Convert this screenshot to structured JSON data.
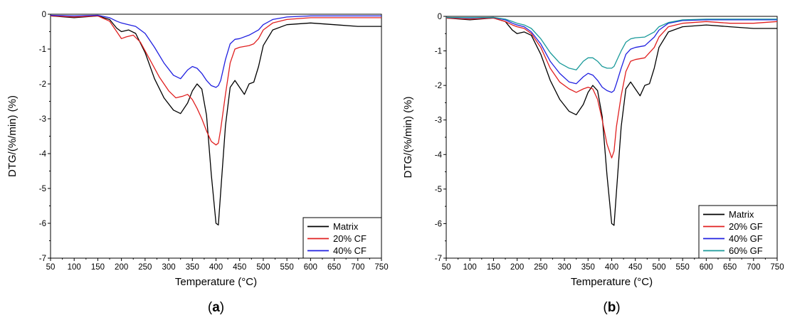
{
  "chart_data": [
    {
      "type": "line",
      "caption_prefix": "(",
      "caption_letter": "a",
      "caption_suffix": ")",
      "xlabel": "Temperature (°C)",
      "ylabel": "DTG/(%/min) (%)",
      "xlim": [
        50,
        750
      ],
      "ylim": [
        -7,
        0
      ],
      "xticks": [
        50,
        100,
        150,
        200,
        250,
        300,
        350,
        400,
        450,
        500,
        550,
        600,
        650,
        700,
        750
      ],
      "yticks": [
        0,
        -1,
        -2,
        -3,
        -4,
        -5,
        -6,
        -7
      ],
      "legend_position": "bottom-right",
      "series": [
        {
          "name": "Matrix",
          "color": "#000000",
          "x": [
            50,
            100,
            150,
            175,
            190,
            200,
            215,
            230,
            250,
            270,
            290,
            310,
            325,
            340,
            350,
            360,
            370,
            380,
            390,
            400,
            405,
            410,
            420,
            430,
            440,
            450,
            460,
            470,
            480,
            490,
            500,
            520,
            550,
            600,
            650,
            700,
            750
          ],
          "y": [
            -0.05,
            -0.1,
            -0.05,
            -0.15,
            -0.4,
            -0.5,
            -0.45,
            -0.55,
            -1.1,
            -1.85,
            -2.4,
            -2.75,
            -2.85,
            -2.55,
            -2.2,
            -2.0,
            -2.15,
            -2.9,
            -4.6,
            -6.0,
            -6.05,
            -5.1,
            -3.2,
            -2.1,
            -1.9,
            -2.1,
            -2.3,
            -2.0,
            -1.95,
            -1.5,
            -0.9,
            -0.45,
            -0.3,
            -0.25,
            -0.3,
            -0.35,
            -0.35
          ]
        },
        {
          "name": "20% CF",
          "color": "#e02020",
          "x": [
            50,
            100,
            150,
            175,
            190,
            200,
            210,
            225,
            240,
            260,
            280,
            300,
            315,
            330,
            340,
            350,
            360,
            370,
            380,
            390,
            400,
            405,
            410,
            420,
            430,
            440,
            450,
            470,
            480,
            490,
            500,
            520,
            550,
            600,
            650,
            700,
            750
          ],
          "y": [
            -0.05,
            -0.08,
            -0.05,
            -0.2,
            -0.5,
            -0.7,
            -0.65,
            -0.6,
            -0.8,
            -1.3,
            -1.8,
            -2.2,
            -2.4,
            -2.35,
            -2.3,
            -2.45,
            -2.7,
            -3.0,
            -3.35,
            -3.65,
            -3.75,
            -3.7,
            -3.3,
            -2.3,
            -1.4,
            -1.0,
            -0.95,
            -0.9,
            -0.85,
            -0.7,
            -0.45,
            -0.25,
            -0.15,
            -0.1,
            -0.1,
            -0.1,
            -0.1
          ]
        },
        {
          "name": "40% CF",
          "color": "#2020e0",
          "x": [
            50,
            100,
            150,
            175,
            190,
            200,
            215,
            230,
            250,
            270,
            290,
            310,
            325,
            340,
            350,
            360,
            370,
            380,
            390,
            400,
            405,
            410,
            420,
            430,
            440,
            450,
            470,
            490,
            500,
            520,
            550,
            600,
            650,
            700,
            750
          ],
          "y": [
            -0.03,
            -0.05,
            -0.03,
            -0.1,
            -0.2,
            -0.25,
            -0.3,
            -0.35,
            -0.55,
            -0.95,
            -1.4,
            -1.75,
            -1.85,
            -1.6,
            -1.5,
            -1.55,
            -1.7,
            -1.9,
            -2.05,
            -2.1,
            -2.05,
            -1.9,
            -1.3,
            -0.85,
            -0.72,
            -0.7,
            -0.6,
            -0.45,
            -0.3,
            -0.15,
            -0.08,
            -0.05,
            -0.05,
            -0.05,
            -0.05
          ]
        }
      ]
    },
    {
      "type": "line",
      "caption_prefix": "(",
      "caption_letter": "b",
      "caption_suffix": ")",
      "xlabel": "Temperature (°C)",
      "ylabel": "DTG/(%/min) (%)",
      "xlim": [
        50,
        750
      ],
      "ylim": [
        -7,
        0
      ],
      "xticks": [
        50,
        100,
        150,
        200,
        250,
        300,
        350,
        400,
        450,
        500,
        550,
        600,
        650,
        700,
        750
      ],
      "yticks": [
        0,
        -1,
        -2,
        -3,
        -4,
        -5,
        -6,
        -7
      ],
      "legend_position": "bottom-right",
      "series": [
        {
          "name": "Matrix",
          "color": "#000000",
          "x": [
            50,
            100,
            150,
            175,
            190,
            200,
            215,
            230,
            250,
            270,
            290,
            310,
            325,
            340,
            350,
            360,
            370,
            380,
            390,
            400,
            405,
            410,
            420,
            430,
            440,
            450,
            460,
            470,
            480,
            490,
            500,
            520,
            550,
            600,
            650,
            700,
            750
          ],
          "y": [
            -0.05,
            -0.1,
            -0.05,
            -0.15,
            -0.4,
            -0.5,
            -0.45,
            -0.55,
            -1.1,
            -1.85,
            -2.4,
            -2.75,
            -2.85,
            -2.55,
            -2.2,
            -2.0,
            -2.15,
            -2.9,
            -4.6,
            -6.0,
            -6.05,
            -5.1,
            -3.2,
            -2.1,
            -1.9,
            -2.1,
            -2.3,
            -2.0,
            -1.95,
            -1.5,
            -0.9,
            -0.45,
            -0.3,
            -0.25,
            -0.3,
            -0.35,
            -0.35
          ]
        },
        {
          "name": "20% GF",
          "color": "#e02020",
          "x": [
            50,
            100,
            150,
            175,
            190,
            200,
            215,
            230,
            250,
            270,
            290,
            310,
            325,
            340,
            350,
            360,
            370,
            380,
            390,
            400,
            405,
            410,
            420,
            430,
            440,
            450,
            470,
            490,
            500,
            520,
            550,
            600,
            650,
            700,
            750
          ],
          "y": [
            -0.05,
            -0.08,
            -0.05,
            -0.15,
            -0.25,
            -0.3,
            -0.35,
            -0.5,
            -0.9,
            -1.5,
            -1.9,
            -2.1,
            -2.2,
            -2.1,
            -2.05,
            -2.1,
            -2.4,
            -3.0,
            -3.7,
            -4.1,
            -3.9,
            -3.2,
            -2.3,
            -1.6,
            -1.3,
            -1.25,
            -1.2,
            -0.9,
            -0.6,
            -0.3,
            -0.2,
            -0.15,
            -0.2,
            -0.2,
            -0.15
          ]
        },
        {
          "name": "40% GF",
          "color": "#2020e0",
          "x": [
            50,
            100,
            150,
            175,
            190,
            200,
            215,
            230,
            250,
            270,
            290,
            310,
            325,
            340,
            350,
            360,
            370,
            380,
            390,
            400,
            405,
            410,
            420,
            430,
            440,
            450,
            470,
            490,
            500,
            520,
            550,
            600,
            650,
            700,
            750
          ],
          "y": [
            -0.03,
            -0.05,
            -0.03,
            -0.1,
            -0.2,
            -0.25,
            -0.3,
            -0.45,
            -0.8,
            -1.3,
            -1.65,
            -1.9,
            -1.95,
            -1.75,
            -1.65,
            -1.7,
            -1.85,
            -2.05,
            -2.15,
            -2.2,
            -2.15,
            -1.95,
            -1.5,
            -1.1,
            -0.95,
            -0.9,
            -0.85,
            -0.6,
            -0.4,
            -0.2,
            -0.12,
            -0.1,
            -0.1,
            -0.1,
            -0.1
          ]
        },
        {
          "name": "60% GF",
          "color": "#1a9a9a",
          "x": [
            50,
            100,
            150,
            175,
            190,
            200,
            215,
            230,
            250,
            270,
            290,
            310,
            325,
            340,
            350,
            360,
            370,
            380,
            390,
            400,
            405,
            410,
            420,
            430,
            440,
            450,
            470,
            490,
            500,
            520,
            550,
            600,
            650,
            700,
            750
          ],
          "y": [
            -0.03,
            -0.04,
            -0.03,
            -0.08,
            -0.15,
            -0.2,
            -0.25,
            -0.35,
            -0.65,
            -1.05,
            -1.35,
            -1.5,
            -1.55,
            -1.3,
            -1.2,
            -1.2,
            -1.3,
            -1.45,
            -1.5,
            -1.5,
            -1.45,
            -1.3,
            -1.0,
            -0.75,
            -0.65,
            -0.62,
            -0.6,
            -0.45,
            -0.3,
            -0.18,
            -0.1,
            -0.08,
            -0.08,
            -0.08,
            -0.08
          ]
        }
      ]
    }
  ]
}
